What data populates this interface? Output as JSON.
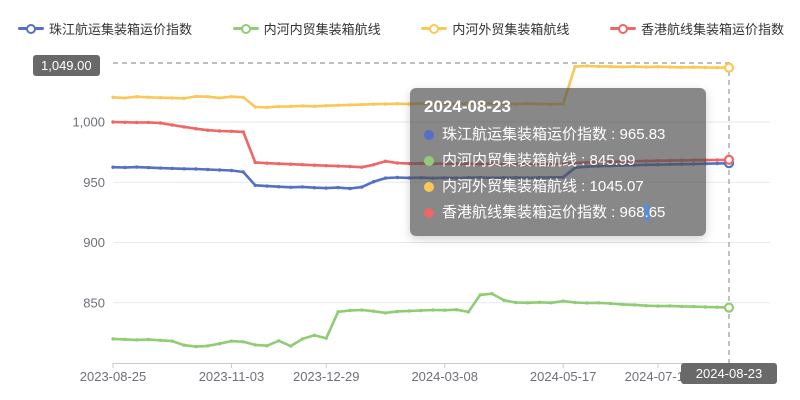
{
  "legend": {
    "items": [
      {
        "label": "珠江航运集装箱运价指数",
        "color": "#5470c6"
      },
      {
        "label": "内河内贸集装箱航线",
        "color": "#91cc75"
      },
      {
        "label": "内河外贸集装箱航线",
        "color": "#fac858"
      },
      {
        "label": "香港航线集装箱运价指数",
        "color": "#ee6666"
      }
    ]
  },
  "tooltip": {
    "title": "2024-08-23",
    "rows": [
      {
        "label": "珠江航运集装箱运价指数",
        "value": "965.83",
        "color": "#5470c6",
        "highlight_decimal": false
      },
      {
        "label": "内河内贸集装箱航线",
        "value": "845.99",
        "color": "#91cc75",
        "highlight_decimal": false
      },
      {
        "label": "内河外贸集装箱航线",
        "value": "1045.07",
        "color": "#fac858",
        "highlight_decimal": false
      },
      {
        "label": "香港航线集装箱运价指数",
        "value": "968.65",
        "color": "#ee6666",
        "highlight_decimal": true
      }
    ]
  },
  "chart_data": {
    "type": "line",
    "title": "",
    "xlabel": "",
    "ylabel": "",
    "ylim": [
      800,
      1050
    ],
    "grid": "on",
    "legend_position": "top",
    "yticks": [
      {
        "label": "850",
        "value": 850
      },
      {
        "label": "900",
        "value": 900
      },
      {
        "label": "950",
        "value": 950
      },
      {
        "label": "1,000",
        "value": 1000
      }
    ],
    "x_tick_labels": [
      {
        "label": "2023-08-25",
        "index": 0
      },
      {
        "label": "2023-11-03",
        "index": 10
      },
      {
        "label": "2023-12-29",
        "index": 18
      },
      {
        "label": "2024-03-08",
        "index": 28
      },
      {
        "label": "2024-05-17",
        "index": 38
      },
      {
        "label": "2024-07-12",
        "index": 46
      }
    ],
    "markline": {
      "value": 1049.0,
      "label": "1,049.00"
    },
    "pointer": {
      "index": 52,
      "label": "2024-08-23"
    },
    "categories": [
      "2023-08-25",
      "2023-09-01",
      "2023-09-08",
      "2023-09-15",
      "2023-09-22",
      "2023-09-29",
      "2023-10-06",
      "2023-10-13",
      "2023-10-20",
      "2023-10-27",
      "2023-11-03",
      "2023-11-10",
      "2023-11-17",
      "2023-11-24",
      "2023-12-01",
      "2023-12-08",
      "2023-12-15",
      "2023-12-22",
      "2023-12-29",
      "2024-01-05",
      "2024-01-12",
      "2024-01-19",
      "2024-01-26",
      "2024-02-02",
      "2024-02-09",
      "2024-02-16",
      "2024-02-23",
      "2024-03-01",
      "2024-03-08",
      "2024-03-15",
      "2024-03-22",
      "2024-03-29",
      "2024-04-05",
      "2024-04-12",
      "2024-04-19",
      "2024-04-26",
      "2024-05-03",
      "2024-05-10",
      "2024-05-17",
      "2024-05-24",
      "2024-05-31",
      "2024-06-07",
      "2024-06-14",
      "2024-06-21",
      "2024-06-28",
      "2024-07-05",
      "2024-07-12",
      "2024-07-19",
      "2024-07-26",
      "2024-08-02",
      "2024-08-09",
      "2024-08-16",
      "2024-08-23"
    ],
    "series": [
      {
        "name": "内河外贸集装箱航线",
        "color": "#fac858",
        "values": [
          1020.5,
          1020.0,
          1021.0,
          1020.5,
          1020.2,
          1020.0,
          1019.6,
          1021.3,
          1021.0,
          1020.0,
          1021.0,
          1020.5,
          1012.5,
          1012.2,
          1012.8,
          1013.0,
          1013.4,
          1013.1,
          1013.6,
          1013.9,
          1014.2,
          1014.5,
          1014.8,
          1015.0,
          1015.2,
          1015.0,
          1015.4,
          1015.1,
          1015.3,
          1015.0,
          1015.4,
          1015.2,
          1015.5,
          1015.2,
          1015.0,
          1015.3,
          1015.0,
          1014.8,
          1015.1,
          1046.0,
          1046.5,
          1046.2,
          1046.0,
          1045.8,
          1046.0,
          1045.7,
          1045.9,
          1045.6,
          1045.4,
          1045.5,
          1045.3,
          1045.2,
          1045.07
        ]
      },
      {
        "name": "珠江航运集装箱运价指数",
        "color": "#5470c6",
        "values": [
          962.5,
          962.3,
          962.6,
          962.2,
          961.8,
          961.5,
          961.2,
          961.0,
          960.6,
          960.2,
          959.8,
          958.5,
          947.5,
          946.8,
          946.3,
          945.8,
          946.2,
          945.5,
          945.2,
          945.6,
          944.8,
          946.0,
          950.5,
          953.5,
          954.0,
          953.6,
          953.8,
          953.5,
          953.7,
          953.5,
          953.8,
          954.0,
          953.6,
          953.8,
          954.0,
          953.7,
          953.9,
          954.0,
          954.2,
          962.0,
          963.0,
          963.4,
          963.7,
          964.0,
          964.2,
          964.5,
          964.6,
          964.8,
          965.0,
          965.2,
          965.4,
          965.6,
          965.83
        ]
      },
      {
        "name": "香港航线集装箱运价指数",
        "color": "#ee6666",
        "values": [
          1000.0,
          999.8,
          999.6,
          999.7,
          999.2,
          997.5,
          996.0,
          994.5,
          993.2,
          992.6,
          992.3,
          991.8,
          966.5,
          965.8,
          965.4,
          965.0,
          964.6,
          964.2,
          963.8,
          963.4,
          963.0,
          962.5,
          964.5,
          967.5,
          966.0,
          965.5,
          965.7,
          965.4,
          965.6,
          965.3,
          965.5,
          965.2,
          965.4,
          965.1,
          965.3,
          965.0,
          965.2,
          965.0,
          965.3,
          966.0,
          966.4,
          966.7,
          967.0,
          967.2,
          967.5,
          967.7,
          967.9,
          968.0,
          968.2,
          968.3,
          968.4,
          968.5,
          968.65
        ]
      },
      {
        "name": "内河内贸集装箱航线",
        "color": "#91cc75",
        "values": [
          820.0,
          819.6,
          819.2,
          819.5,
          818.8,
          818.2,
          814.8,
          813.6,
          814.2,
          816.0,
          818.2,
          817.6,
          815.0,
          814.4,
          818.4,
          814.0,
          820.0,
          823.0,
          820.5,
          842.5,
          843.6,
          844.0,
          843.0,
          841.6,
          842.8,
          843.2,
          843.6,
          844.0,
          843.8,
          844.2,
          842.4,
          856.5,
          857.5,
          852.0,
          850.2,
          850.0,
          850.4,
          850.0,
          851.4,
          850.2,
          849.8,
          850.0,
          849.4,
          848.6,
          848.2,
          847.6,
          847.2,
          847.4,
          847.0,
          846.8,
          846.5,
          846.3,
          845.99
        ]
      }
    ]
  }
}
